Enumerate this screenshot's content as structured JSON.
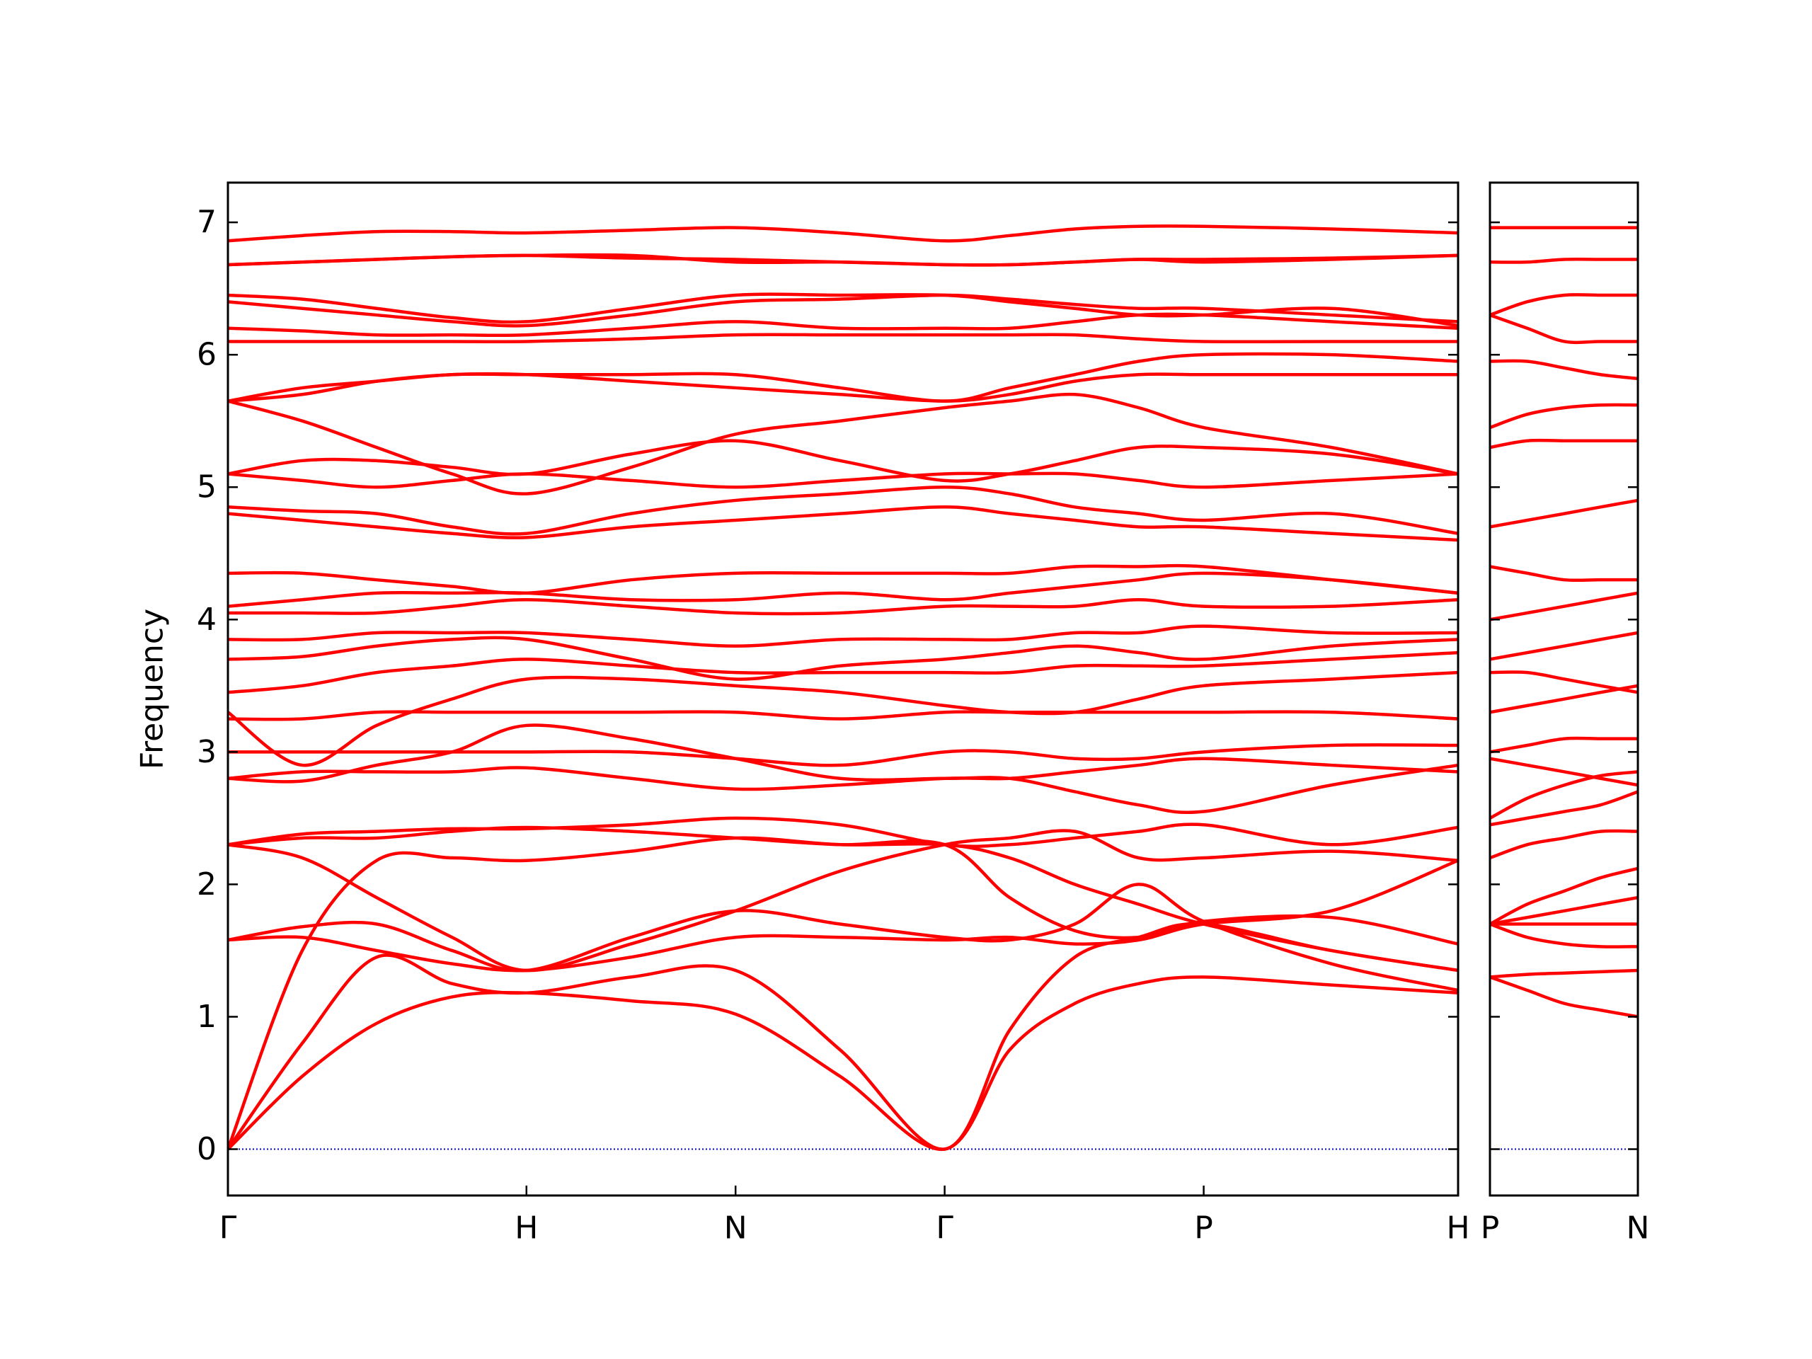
{
  "chart_data": [
    {
      "type": "line",
      "ylabel": "Frequency",
      "color": "#ff0000",
      "xlim": [
        0,
        1.059
      ],
      "ylim": [
        -0.35,
        7.3
      ],
      "xticks": [
        {
          "value": 0,
          "label": "Γ"
        },
        {
          "value": 0.257,
          "label": "H"
        },
        {
          "value": 0.437,
          "label": "N"
        },
        {
          "value": 0.617,
          "label": "Γ"
        },
        {
          "value": 0.84,
          "label": "P"
        },
        {
          "value": 1.059,
          "label": "H"
        }
      ],
      "yticks": [
        0,
        1,
        2,
        3,
        4,
        5,
        6,
        7
      ],
      "ytick_labels": true,
      "hline": {
        "y": 0,
        "color": "#0000cc",
        "style": "dotted"
      },
      "x": [
        0,
        0.064,
        0.128,
        0.193,
        0.257,
        0.347,
        0.437,
        0.527,
        0.617,
        0.673,
        0.729,
        0.784,
        0.84,
        0.95,
        1.059
      ],
      "series": [
        {
          "values": [
            0,
            0.55,
            0.95,
            1.15,
            1.18,
            1.12,
            1.02,
            0.55,
            0,
            0.75,
            1.1,
            1.25,
            1.3,
            1.24,
            1.18
          ]
        },
        {
          "values": [
            0,
            0.8,
            1.45,
            1.25,
            1.18,
            1.3,
            1.35,
            0.75,
            0,
            0.9,
            1.45,
            1.6,
            1.7,
            1.5,
            1.35
          ]
        },
        {
          "values": [
            0,
            1.5,
            2.18,
            2.2,
            2.18,
            2.25,
            2.35,
            2.3,
            2.3,
            1.9,
            1.65,
            1.6,
            1.72,
            1.75,
            1.55
          ]
        },
        {
          "values": [
            1.58,
            1.6,
            1.5,
            1.4,
            1.35,
            1.45,
            1.6,
            1.6,
            1.58,
            1.6,
            1.55,
            1.58,
            1.7,
            1.8,
            2.18
          ]
        },
        {
          "values": [
            1.58,
            1.68,
            1.7,
            1.5,
            1.35,
            1.6,
            1.8,
            1.7,
            1.6,
            1.58,
            1.7,
            2.0,
            1.72,
            1.4,
            1.2
          ]
        },
        {
          "values": [
            2.3,
            2.2,
            1.9,
            1.6,
            1.35,
            1.55,
            1.8,
            2.1,
            2.3,
            2.35,
            2.4,
            2.2,
            2.2,
            2.25,
            2.18
          ]
        },
        {
          "values": [
            2.3,
            2.35,
            2.35,
            2.4,
            2.43,
            2.4,
            2.35,
            2.3,
            2.3,
            2.2,
            2.0,
            1.85,
            1.7,
            1.5,
            1.35
          ]
        },
        {
          "values": [
            2.3,
            2.38,
            2.4,
            2.42,
            2.42,
            2.45,
            2.5,
            2.45,
            2.3,
            2.3,
            2.35,
            2.4,
            2.45,
            2.3,
            2.43
          ]
        },
        {
          "values": [
            2.8,
            2.78,
            2.9,
            3.0,
            3.2,
            3.1,
            2.95,
            2.8,
            2.8,
            2.8,
            2.7,
            2.6,
            2.55,
            2.75,
            2.9
          ]
        },
        {
          "values": [
            2.8,
            2.85,
            2.85,
            2.85,
            2.88,
            2.8,
            2.72,
            2.75,
            2.8,
            2.8,
            2.85,
            2.9,
            2.95,
            2.9,
            2.85
          ]
        },
        {
          "values": [
            3.0,
            3.0,
            3.0,
            3.0,
            3.0,
            3.0,
            2.95,
            2.9,
            3.0,
            3.0,
            2.95,
            2.95,
            3.0,
            3.05,
            3.05
          ]
        },
        {
          "values": [
            3.25,
            3.25,
            3.3,
            3.3,
            3.3,
            3.3,
            3.3,
            3.25,
            3.3,
            3.3,
            3.3,
            3.3,
            3.3,
            3.3,
            3.25
          ]
        },
        {
          "values": [
            3.3,
            2.9,
            3.2,
            3.4,
            3.55,
            3.55,
            3.5,
            3.45,
            3.35,
            3.3,
            3.3,
            3.4,
            3.5,
            3.55,
            3.6
          ]
        },
        {
          "values": [
            3.45,
            3.5,
            3.6,
            3.65,
            3.7,
            3.65,
            3.6,
            3.6,
            3.6,
            3.6,
            3.65,
            3.65,
            3.65,
            3.7,
            3.75
          ]
        },
        {
          "values": [
            3.7,
            3.72,
            3.8,
            3.85,
            3.85,
            3.7,
            3.55,
            3.65,
            3.7,
            3.75,
            3.8,
            3.75,
            3.7,
            3.8,
            3.85
          ]
        },
        {
          "values": [
            3.85,
            3.85,
            3.9,
            3.9,
            3.9,
            3.85,
            3.8,
            3.85,
            3.85,
            3.85,
            3.9,
            3.9,
            3.95,
            3.9,
            3.9
          ]
        },
        {
          "values": [
            4.05,
            4.05,
            4.05,
            4.1,
            4.15,
            4.1,
            4.05,
            4.05,
            4.1,
            4.1,
            4.1,
            4.15,
            4.1,
            4.1,
            4.15
          ]
        },
        {
          "values": [
            4.1,
            4.15,
            4.2,
            4.2,
            4.2,
            4.15,
            4.15,
            4.2,
            4.15,
            4.2,
            4.25,
            4.3,
            4.35,
            4.3,
            4.2
          ]
        },
        {
          "values": [
            4.35,
            4.35,
            4.3,
            4.25,
            4.2,
            4.3,
            4.35,
            4.35,
            4.35,
            4.35,
            4.4,
            4.4,
            4.4,
            4.3,
            4.2
          ]
        },
        {
          "values": [
            4.8,
            4.75,
            4.7,
            4.65,
            4.62,
            4.7,
            4.75,
            4.8,
            4.85,
            4.8,
            4.75,
            4.7,
            4.7,
            4.65,
            4.6
          ]
        },
        {
          "values": [
            4.85,
            4.82,
            4.8,
            4.7,
            4.65,
            4.8,
            4.9,
            4.95,
            5.0,
            4.95,
            4.85,
            4.8,
            4.75,
            4.8,
            4.65
          ]
        },
        {
          "values": [
            5.1,
            5.05,
            5.0,
            5.05,
            5.1,
            5.05,
            5.0,
            5.05,
            5.1,
            5.1,
            5.1,
            5.05,
            5.0,
            5.05,
            5.1
          ]
        },
        {
          "values": [
            5.1,
            5.2,
            5.2,
            5.15,
            5.1,
            5.25,
            5.35,
            5.2,
            5.05,
            5.1,
            5.2,
            5.3,
            5.3,
            5.25,
            5.1
          ]
        },
        {
          "values": [
            5.65,
            5.5,
            5.3,
            5.1,
            4.95,
            5.15,
            5.4,
            5.5,
            5.6,
            5.65,
            5.7,
            5.6,
            5.45,
            5.3,
            5.1
          ]
        },
        {
          "values": [
            5.65,
            5.75,
            5.8,
            5.85,
            5.85,
            5.8,
            5.75,
            5.7,
            5.65,
            5.7,
            5.8,
            5.85,
            5.85,
            5.85,
            5.85
          ]
        },
        {
          "values": [
            5.65,
            5.7,
            5.8,
            5.85,
            5.85,
            5.85,
            5.85,
            5.75,
            5.65,
            5.75,
            5.85,
            5.95,
            6.0,
            6.0,
            5.95
          ]
        },
        {
          "values": [
            6.1,
            6.1,
            6.1,
            6.1,
            6.1,
            6.12,
            6.15,
            6.15,
            6.15,
            6.15,
            6.15,
            6.12,
            6.1,
            6.1,
            6.1
          ]
        },
        {
          "values": [
            6.2,
            6.18,
            6.15,
            6.15,
            6.15,
            6.2,
            6.25,
            6.2,
            6.2,
            6.2,
            6.25,
            6.3,
            6.3,
            6.25,
            6.2
          ]
        },
        {
          "values": [
            6.4,
            6.35,
            6.3,
            6.25,
            6.22,
            6.3,
            6.4,
            6.42,
            6.45,
            6.42,
            6.38,
            6.35,
            6.35,
            6.3,
            6.25
          ]
        },
        {
          "values": [
            6.45,
            6.42,
            6.35,
            6.28,
            6.25,
            6.35,
            6.45,
            6.45,
            6.45,
            6.4,
            6.35,
            6.3,
            6.3,
            6.35,
            6.22
          ]
        },
        {
          "values": [
            6.68,
            6.7,
            6.72,
            6.74,
            6.75,
            6.73,
            6.72,
            6.7,
            6.68,
            6.68,
            6.7,
            6.72,
            6.72,
            6.73,
            6.75
          ]
        },
        {
          "values": [
            6.68,
            6.7,
            6.72,
            6.74,
            6.75,
            6.75,
            6.7,
            6.7,
            6.68,
            6.68,
            6.7,
            6.72,
            6.7,
            6.72,
            6.75
          ]
        },
        {
          "values": [
            6.86,
            6.9,
            6.93,
            6.93,
            6.92,
            6.94,
            6.96,
            6.92,
            6.86,
            6.9,
            6.95,
            6.97,
            6.97,
            6.95,
            6.92
          ]
        }
      ]
    },
    {
      "type": "line",
      "color": "#ff0000",
      "xlim": [
        0,
        0.127
      ],
      "ylim": [
        -0.35,
        7.3
      ],
      "xticks": [
        {
          "value": 0,
          "label": "P"
        },
        {
          "value": 0.127,
          "label": "N"
        }
      ],
      "yticks": [
        0,
        1,
        2,
        3,
        4,
        5,
        6,
        7
      ],
      "ytick_labels": false,
      "hline": {
        "y": 0,
        "color": "#0000cc",
        "style": "dotted"
      },
      "x": [
        0,
        0.032,
        0.064,
        0.095,
        0.127
      ],
      "series": [
        {
          "values": [
            1.3,
            1.2,
            1.1,
            1.05,
            1.0
          ]
        },
        {
          "values": [
            1.3,
            1.32,
            1.33,
            1.34,
            1.35
          ]
        },
        {
          "values": [
            1.7,
            1.6,
            1.55,
            1.53,
            1.53
          ]
        },
        {
          "values": [
            1.7,
            1.7,
            1.7,
            1.7,
            1.7
          ]
        },
        {
          "values": [
            1.7,
            1.75,
            1.8,
            1.85,
            1.9
          ]
        },
        {
          "values": [
            1.7,
            1.85,
            1.95,
            2.05,
            2.12
          ]
        },
        {
          "values": [
            2.2,
            2.3,
            2.35,
            2.4,
            2.4
          ]
        },
        {
          "values": [
            2.45,
            2.5,
            2.55,
            2.6,
            2.7
          ]
        },
        {
          "values": [
            2.5,
            2.65,
            2.75,
            2.82,
            2.85
          ]
        },
        {
          "values": [
            2.95,
            2.9,
            2.85,
            2.8,
            2.75
          ]
        },
        {
          "values": [
            3.0,
            3.05,
            3.1,
            3.1,
            3.1
          ]
        },
        {
          "values": [
            3.3,
            3.35,
            3.4,
            3.45,
            3.5
          ]
        },
        {
          "values": [
            3.6,
            3.6,
            3.55,
            3.5,
            3.45
          ]
        },
        {
          "values": [
            3.7,
            3.75,
            3.8,
            3.85,
            3.9
          ]
        },
        {
          "values": [
            4.0,
            4.05,
            4.1,
            4.15,
            4.2
          ]
        },
        {
          "values": [
            4.4,
            4.35,
            4.3,
            4.3,
            4.3
          ]
        },
        {
          "values": [
            4.7,
            4.75,
            4.8,
            4.85,
            4.9
          ]
        },
        {
          "values": [
            5.3,
            5.35,
            5.35,
            5.35,
            5.35
          ]
        },
        {
          "values": [
            5.45,
            5.55,
            5.6,
            5.62,
            5.62
          ]
        },
        {
          "values": [
            5.95,
            5.95,
            5.9,
            5.85,
            5.82
          ]
        },
        {
          "values": [
            6.3,
            6.2,
            6.1,
            6.1,
            6.1
          ]
        },
        {
          "values": [
            6.3,
            6.4,
            6.45,
            6.45,
            6.45
          ]
        },
        {
          "values": [
            6.7,
            6.7,
            6.72,
            6.72,
            6.72
          ]
        },
        {
          "values": [
            6.96,
            6.96,
            6.96,
            6.96,
            6.96
          ]
        }
      ]
    }
  ]
}
